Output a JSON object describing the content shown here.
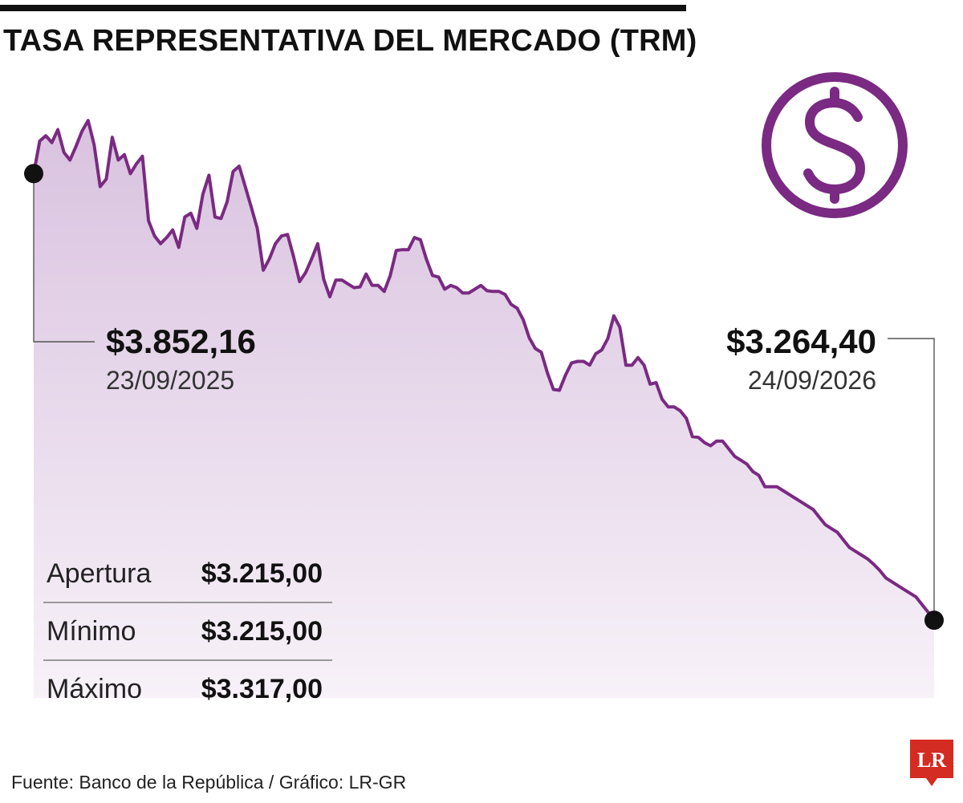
{
  "title": "TASA REPRESENTATIVA DEL MERCADO (TRM)",
  "callouts": {
    "start": {
      "value": "$3.852,16",
      "date": "23/09/2025"
    },
    "end": {
      "value": "$3.264,40",
      "date": "24/09/2026"
    }
  },
  "stats": [
    {
      "label": "Apertura",
      "value": "$3.215,00"
    },
    {
      "label": "Mínimo",
      "value": "$3.215,00"
    },
    {
      "label": "Máximo",
      "value": "$3.317,00"
    }
  ],
  "source": "Fuente: Banco de la República / Gráfico: LR-GR",
  "logo_text": "LR",
  "colors": {
    "line": "#7a2a82",
    "fill": "#d9c2df",
    "logo_red": "#d42b23"
  },
  "icons": {
    "header": "dollar-icon",
    "brand": "lr-logo"
  },
  "chart_data": {
    "type": "area",
    "title": "TASA REPRESENTATIVA DEL MERCADO (TRM)",
    "xlabel": "",
    "ylabel": "",
    "x_range": [
      "23/09/2025",
      "24/09/2026"
    ],
    "ylim": [
      3160,
      3880
    ],
    "grid": false,
    "legend": "none",
    "series": [
      {
        "values": [
          3852.16,
          3895,
          3902,
          3893,
          3910,
          3880,
          3870,
          3888,
          3908,
          3922,
          3890,
          3835,
          3845,
          3900,
          3870,
          3877,
          3852,
          3865,
          3875,
          3790,
          3770,
          3760,
          3768,
          3778,
          3755,
          3795,
          3800,
          3780,
          3825,
          3850,
          3795,
          3793,
          3815,
          3855,
          3862,
          3835,
          3808,
          3780,
          3725,
          3740,
          3760,
          3770,
          3772,
          3743,
          3710,
          3722,
          3740,
          3760,
          3713,
          3690,
          3712,
          3712,
          3707,
          3702,
          3703,
          3720,
          3705,
          3705,
          3697,
          3718,
          3751,
          3752,
          3752,
          3768,
          3765,
          3739,
          3718,
          3716,
          3700,
          3705,
          3702,
          3695,
          3695,
          3700,
          3705,
          3698,
          3697,
          3697,
          3693,
          3680,
          3675,
          3660,
          3636,
          3622,
          3617,
          3590,
          3568,
          3567,
          3587,
          3603,
          3605,
          3605,
          3600,
          3615,
          3620,
          3635,
          3665,
          3650,
          3600,
          3600,
          3610,
          3600,
          3575,
          3577,
          3555,
          3545,
          3545,
          3540,
          3530,
          3506,
          3505,
          3498,
          3494,
          3500,
          3500,
          3490,
          3480,
          3475,
          3470,
          3460,
          3455,
          3440,
          3440,
          3440,
          3435,
          3430,
          3425,
          3420,
          3415,
          3410,
          3400,
          3390,
          3385,
          3380,
          3370,
          3360,
          3355,
          3350,
          3345,
          3338,
          3330,
          3320,
          3315,
          3310,
          3305,
          3300,
          3295,
          3285,
          3275,
          3264.4
        ]
      }
    ]
  }
}
